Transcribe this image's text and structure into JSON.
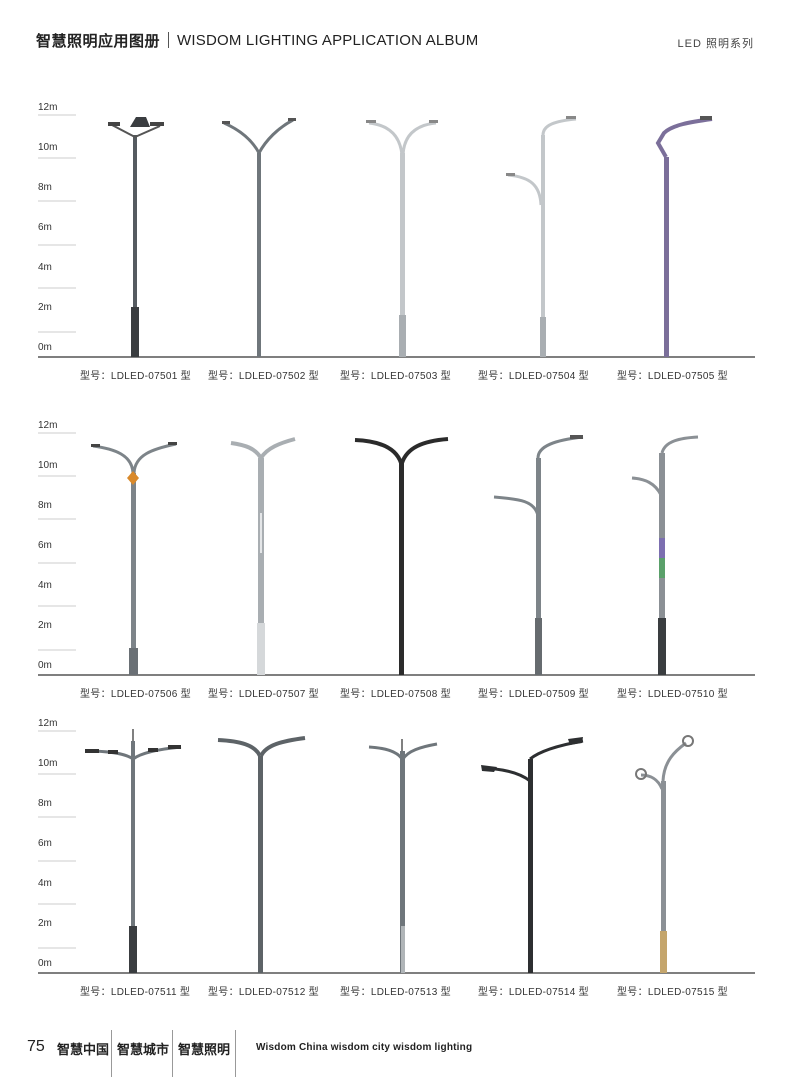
{
  "header": {
    "title_cn": "智慧照明应用图册",
    "title_en": "WISDOM LIGHTING APPLICATION ALBUM",
    "series": "LED 照明系列"
  },
  "scale_labels": [
    "12m",
    "10m",
    "8m",
    "6m",
    "4m",
    "2m",
    "0m"
  ],
  "rows": [
    {
      "models": [
        "型号：LDLED-07501 型",
        "型号：LDLED-07502 型",
        "型号：LDLED-07503 型",
        "型号：LDLED-07504 型",
        "型号：LDLED-07505 型"
      ]
    },
    {
      "models": [
        "型号：LDLED-07506 型",
        "型号：LDLED-07507 型",
        "型号：LDLED-07508 型",
        "型号：LDLED-07509 型",
        "型号：LDLED-07510 型"
      ]
    },
    {
      "models": [
        "型号：LDLED-07511 型",
        "型号：LDLED-07512 型",
        "型号：LDLED-07513 型",
        "型号：LDLED-07514 型",
        "型号：LDLED-07515 型"
      ]
    }
  ],
  "footer": {
    "page": "75",
    "items": [
      "智慧中国",
      "智慧城市",
      "智慧照明"
    ],
    "tagline": "Wisdom China  wisdom city  wisdom lighting"
  },
  "colors": {
    "pole_gray": "#6f767b",
    "pole_light": "#b9bec2",
    "pole_dark": "#2b2b2b",
    "pole_purple": "#7b6f9a",
    "accent_orange": "#d9892b"
  }
}
